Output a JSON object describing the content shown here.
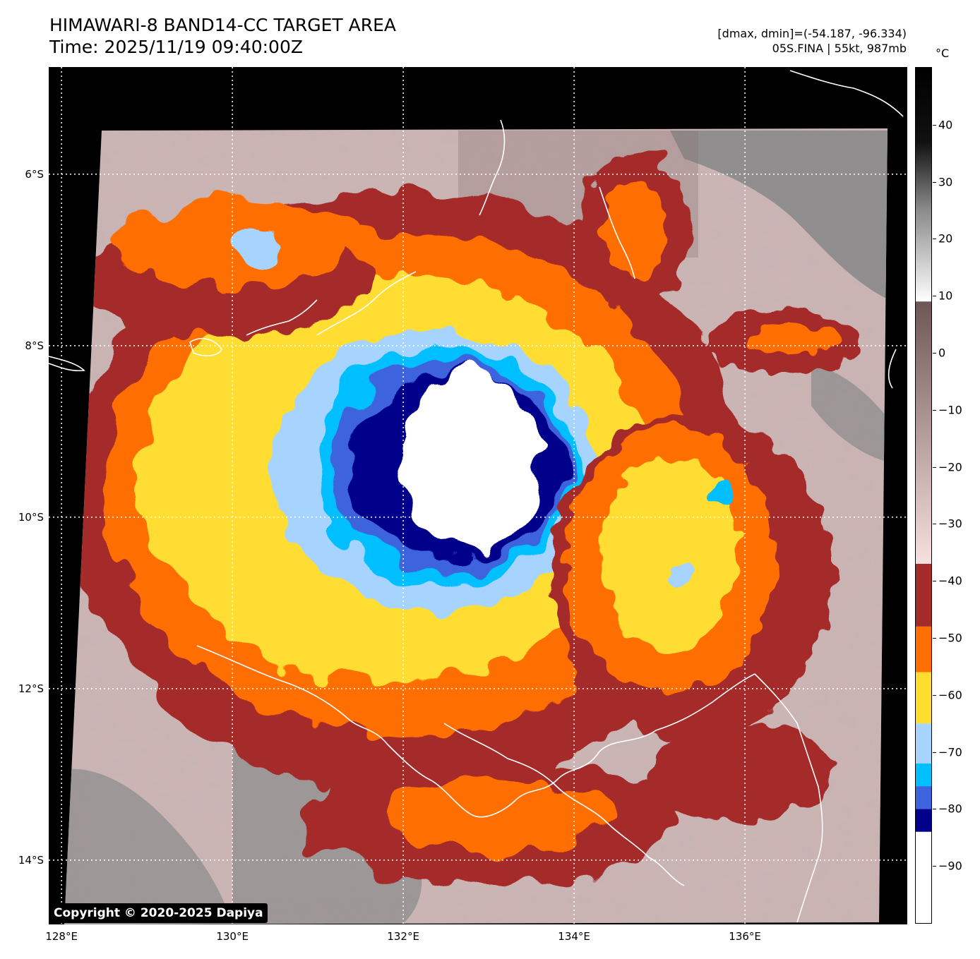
{
  "header": {
    "title_line1": "HIMAWARI-8 BAND14-CC TARGET AREA",
    "title_line2": "Time: 2025/11/19 09:40:00Z",
    "dminmax": "[dmax, dmin]=(-54.187, -96.334)",
    "storm": "05S.FINA | 55kt, 987mb"
  },
  "colorbar": {
    "unit": "°C",
    "range": [
      -100,
      50
    ],
    "ticks": [
      {
        "value": 40,
        "label": "40"
      },
      {
        "value": 30,
        "label": "30"
      },
      {
        "value": 20,
        "label": "20"
      },
      {
        "value": 10,
        "label": "10"
      },
      {
        "value": 0,
        "label": "0"
      },
      {
        "value": -10,
        "label": "−10"
      },
      {
        "value": -20,
        "label": "−20"
      },
      {
        "value": -30,
        "label": "−30"
      },
      {
        "value": -40,
        "label": "−40"
      },
      {
        "value": -50,
        "label": "−50"
      },
      {
        "value": -60,
        "label": "−60"
      },
      {
        "value": -70,
        "label": "−70"
      },
      {
        "value": -80,
        "label": "−80"
      },
      {
        "value": -90,
        "label": "−90"
      }
    ],
    "bands": [
      {
        "from": -100,
        "to": -84,
        "color": "#ffffff"
      },
      {
        "from": -84,
        "to": -80,
        "color": "#00008b"
      },
      {
        "from": -80,
        "to": -76,
        "color": "#3d63dd"
      },
      {
        "from": -76,
        "to": -72,
        "color": "#00bfff"
      },
      {
        "from": -72,
        "to": -65,
        "color": "#a6d4ff"
      },
      {
        "from": -65,
        "to": -56,
        "color": "#ffdd30"
      },
      {
        "from": -56,
        "to": -48,
        "color": "#ff6e00"
      },
      {
        "from": -48,
        "to": -37,
        "color": "#a52a2a"
      }
    ]
  },
  "map": {
    "lat_labels": [
      {
        "value": -6,
        "label": "6°S"
      },
      {
        "value": -8,
        "label": "8°S"
      },
      {
        "value": -10,
        "label": "10°S"
      },
      {
        "value": -12,
        "label": "12°S"
      },
      {
        "value": -14,
        "label": "14°S"
      }
    ],
    "lon_labels": [
      {
        "value": 128,
        "label": "128°E"
      },
      {
        "value": 130,
        "label": "130°E"
      },
      {
        "value": 132,
        "label": "132°E"
      },
      {
        "value": 134,
        "label": "134°E"
      },
      {
        "value": 136,
        "label": "136°E"
      }
    ],
    "lon_range": [
      127.85,
      137.9
    ],
    "lat_range": [
      -14.75,
      -4.75
    ],
    "storm_center": {
      "lon": 132.55,
      "lat": -9.45
    },
    "colors": {
      "ambient": "#cdb4b4",
      "ambient_dark": "#8c7575",
      "land_warm": "#8a8a8a",
      "no_data": "#000000",
      "coastline": "#ffffff"
    }
  },
  "copyright": "Copyright © 2020-2025 Dapiya"
}
